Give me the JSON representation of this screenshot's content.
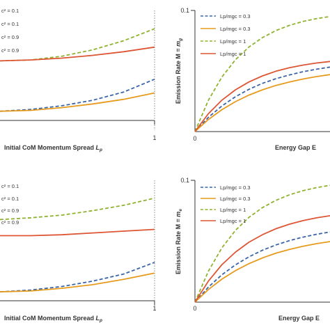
{
  "colors": {
    "blue": "#3a64a8",
    "orange": "#e69b1c",
    "green": "#8fb22e",
    "red": "#dd5533",
    "axis": "#333333"
  },
  "chart_data": [
    {
      "id": "top-left",
      "type": "line",
      "xlabel_main": "Initial CoM Momentum Spread ",
      "xlabel_sub": "L",
      "xlabel_subscript": "p",
      "x_tick_label": "1",
      "legend": [
        "c² = 0.1",
        "c² = 0.1",
        "c² = 0.9",
        "c² = 0.9"
      ],
      "series": [
        {
          "color": "blue",
          "dash": true,
          "x": [
            0,
            0.2,
            0.4,
            0.6,
            0.8,
            1.0
          ],
          "y": [
            0.01,
            0.012,
            0.016,
            0.022,
            0.031,
            0.045
          ]
        },
        {
          "color": "orange",
          "dash": false,
          "x": [
            0,
            0.2,
            0.4,
            0.6,
            0.8,
            1.0
          ],
          "y": [
            0.01,
            0.011,
            0.014,
            0.018,
            0.023,
            0.03
          ]
        },
        {
          "color": "green",
          "dash": true,
          "x": [
            0,
            0.2,
            0.4,
            0.6,
            0.8,
            1.0
          ],
          "y": [
            0.065,
            0.066,
            0.07,
            0.077,
            0.087,
            0.1
          ]
        },
        {
          "color": "red",
          "dash": false,
          "x": [
            0,
            0.2,
            0.4,
            0.6,
            0.8,
            1.0
          ],
          "y": [
            0.065,
            0.066,
            0.068,
            0.071,
            0.075,
            0.08
          ]
        }
      ]
    },
    {
      "id": "top-right",
      "type": "line",
      "ylabel_main": "Emission Rate M = ",
      "ylabel_sub": "m",
      "ylabel_subscript": "g",
      "xlabel": "Energy Gap E",
      "x_tick_label": "0",
      "y_tick_label": "0.1",
      "ylim": [
        0,
        0.1
      ],
      "legend": [
        "Lp/mgc = 0.3",
        "Lp/mgc = 0.3",
        "Lp/mgc = 1",
        "Lp/mgc = 1"
      ],
      "series": [
        {
          "color": "blue",
          "dash": true,
          "x": [
            0,
            0.1,
            0.2,
            0.3,
            0.4,
            0.5,
            0.6,
            0.7,
            0.8,
            0.9,
            1.0
          ],
          "y": [
            0,
            0.0118,
            0.0212,
            0.0288,
            0.0349,
            0.0398,
            0.0437,
            0.0468,
            0.0494,
            0.0515,
            0.0532
          ]
        },
        {
          "color": "orange",
          "dash": false,
          "x": [
            0,
            0.1,
            0.2,
            0.3,
            0.4,
            0.5,
            0.6,
            0.7,
            0.8,
            0.9,
            1.0
          ],
          "y": [
            0,
            0.01,
            0.0181,
            0.0247,
            0.0301,
            0.0345,
            0.0381,
            0.041,
            0.0434,
            0.0454,
            0.047
          ]
        },
        {
          "color": "green",
          "dash": true,
          "x": [
            0,
            0.1,
            0.2,
            0.3,
            0.4,
            0.5,
            0.6,
            0.7,
            0.8,
            0.9,
            1.0
          ],
          "y": [
            0,
            0.0259,
            0.0451,
            0.0593,
            0.0698,
            0.0776,
            0.0834,
            0.0877,
            0.0909,
            0.0932,
            0.095
          ]
        },
        {
          "color": "red",
          "dash": false,
          "x": [
            0,
            0.1,
            0.2,
            0.3,
            0.4,
            0.5,
            0.6,
            0.7,
            0.8,
            0.9,
            1.0
          ],
          "y": [
            0,
            0.0148,
            0.026,
            0.0345,
            0.041,
            0.046,
            0.0498,
            0.0527,
            0.0549,
            0.0566,
            0.0579
          ]
        }
      ]
    },
    {
      "id": "bottom-left",
      "type": "line",
      "xlabel_main": "Initial CoM Momentum Spread ",
      "xlabel_sub": "L",
      "xlabel_subscript": "p",
      "x_tick_label": "1",
      "legend": [
        "c² = 0.1",
        "c² = 0.1",
        "c² = 0.9",
        "c² = 0.9"
      ],
      "series": [
        {
          "color": "blue",
          "dash": true,
          "x": [
            0,
            0.2,
            0.4,
            0.6,
            0.8,
            1.0
          ],
          "y": [
            0.01,
            0.012,
            0.016,
            0.022,
            0.03,
            0.043
          ]
        },
        {
          "color": "orange",
          "dash": false,
          "x": [
            0,
            0.2,
            0.4,
            0.6,
            0.8,
            1.0
          ],
          "y": [
            0.01,
            0.011,
            0.014,
            0.018,
            0.024,
            0.031
          ]
        },
        {
          "color": "green",
          "dash": true,
          "x": [
            0,
            0.2,
            0.4,
            0.6,
            0.8,
            1.0
          ],
          "y": [
            0.091,
            0.093,
            0.096,
            0.101,
            0.107,
            0.115
          ]
        },
        {
          "color": "red",
          "dash": false,
          "x": [
            0,
            0.2,
            0.4,
            0.6,
            0.8,
            1.0
          ],
          "y": [
            0.073,
            0.073,
            0.074,
            0.076,
            0.078,
            0.08
          ]
        }
      ]
    },
    {
      "id": "bottom-right",
      "type": "line",
      "ylabel_main": "Emission Rate M = ",
      "ylabel_sub": "m",
      "ylabel_subscript": "e",
      "xlabel": "Energy Gap E",
      "x_tick_label": "0",
      "y_tick_label": "0.1",
      "ylim": [
        0,
        0.1
      ],
      "legend": [
        "Lp/mgc = 0.3",
        "Lp/mgc = 0.3",
        "Lp/mgc = 1",
        "Lp/mgc = 1"
      ],
      "series": [
        {
          "color": "blue",
          "dash": true,
          "x": [
            0,
            0.1,
            0.2,
            0.3,
            0.4,
            0.5,
            0.6,
            0.7,
            0.8,
            0.9,
            1.0
          ],
          "y": [
            0,
            0.0124,
            0.0225,
            0.0306,
            0.0372,
            0.0426,
            0.047,
            0.0505,
            0.0534,
            0.0557,
            0.0576
          ]
        },
        {
          "color": "orange",
          "dash": false,
          "x": [
            0,
            0.1,
            0.2,
            0.3,
            0.4,
            0.5,
            0.6,
            0.7,
            0.8,
            0.9,
            1.0
          ],
          "y": [
            0,
            0.0104,
            0.0189,
            0.0259,
            0.0316,
            0.0363,
            0.0402,
            0.0433,
            0.0459,
            0.048,
            0.0497
          ]
        },
        {
          "color": "green",
          "dash": true,
          "x": [
            0,
            0.1,
            0.2,
            0.3,
            0.4,
            0.5,
            0.6,
            0.7,
            0.8,
            0.9,
            1.0
          ],
          "y": [
            0,
            0.0255,
            0.0446,
            0.0589,
            0.0696,
            0.0776,
            0.0836,
            0.0881,
            0.0915,
            0.094,
            0.0959
          ]
        },
        {
          "color": "red",
          "dash": false,
          "x": [
            0,
            0.1,
            0.2,
            0.3,
            0.4,
            0.5,
            0.6,
            0.7,
            0.8,
            0.9,
            1.0
          ],
          "y": [
            0,
            0.0173,
            0.0308,
            0.0411,
            0.0492,
            0.0554,
            0.0603,
            0.064,
            0.0669,
            0.0692,
            0.0709
          ]
        }
      ]
    }
  ]
}
